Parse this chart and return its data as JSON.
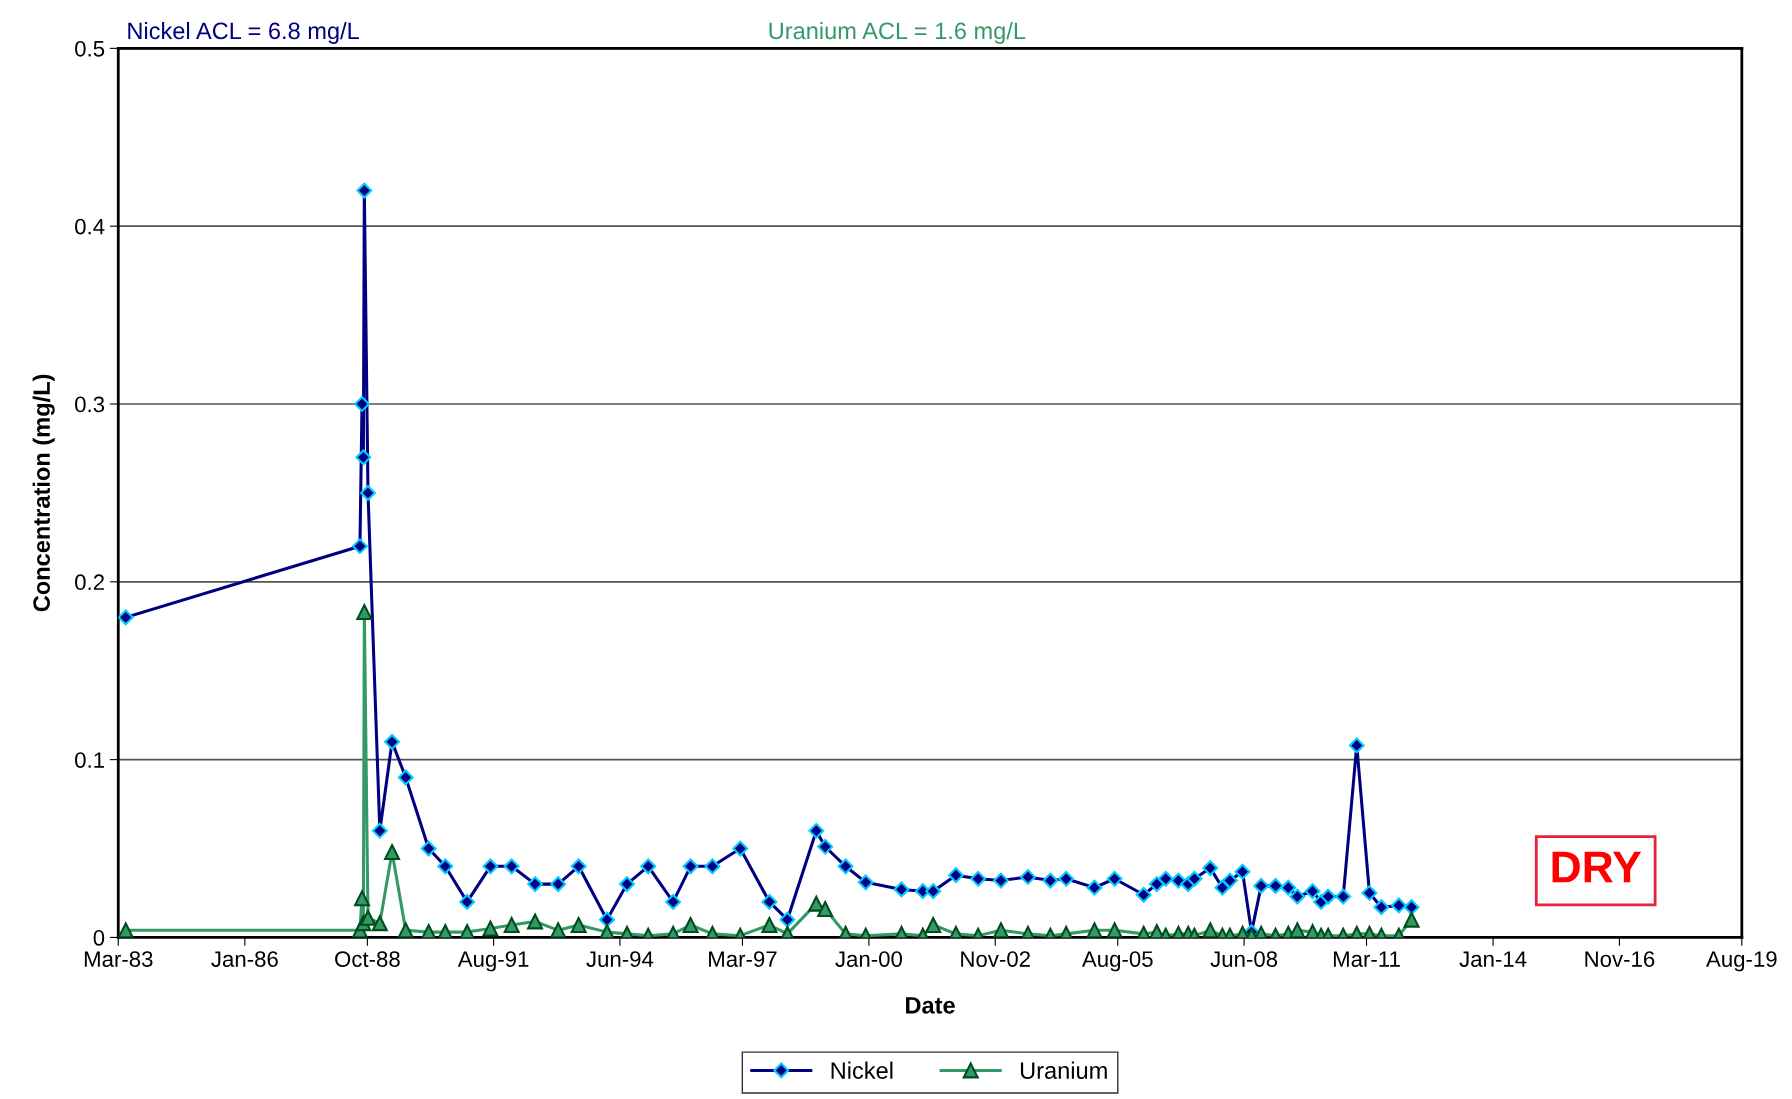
{
  "chart_data": {
    "type": "line",
    "xlabel": "Date",
    "ylabel": "Concentration (mg/L)",
    "x": [
      "1983-05-15",
      "1988-08-15",
      "1988-09-01",
      "1988-09-12",
      "1988-09-20",
      "1988-10-20",
      "1989-01-25",
      "1989-05-05",
      "1989-08-25",
      "1990-03-01",
      "1990-07-15",
      "1991-01-10",
      "1991-07-20",
      "1992-01-10",
      "1992-07-20",
      "1993-01-25",
      "1993-07-12",
      "1994-03-01",
      "1994-08-12",
      "1995-02-02",
      "1995-08-25",
      "1996-01-15",
      "1996-07-12",
      "1997-02-25",
      "1997-10-22",
      "1998-03-18",
      "1998-11-10",
      "1999-01-22",
      "1999-07-08",
      "1999-12-20",
      "2000-10-08",
      "2001-04-01",
      "2001-06-25",
      "2001-12-28",
      "2002-06-28",
      "2003-01-01",
      "2003-08-10",
      "2004-02-10",
      "2004-06-18",
      "2005-02-05",
      "2005-07-20",
      "2006-03-15",
      "2006-07-01",
      "2006-09-12",
      "2006-12-25",
      "2007-03-15",
      "2007-05-05",
      "2007-09-12",
      "2007-12-20",
      "2008-02-20",
      "2008-06-02",
      "2008-08-15",
      "2008-11-02",
      "2009-02-28",
      "2009-06-12",
      "2009-08-25",
      "2009-12-28",
      "2010-03-08",
      "2010-05-05",
      "2010-09-05",
      "2010-12-25",
      "2011-04-08",
      "2011-07-15",
      "2011-12-05",
      "2012-03-18"
    ],
    "series": [
      {
        "name": "Nickel",
        "color": "#000080",
        "marker": "diamond",
        "values": [
          0.18,
          0.22,
          0.3,
          0.27,
          0.42,
          0.25,
          0.06,
          0.11,
          0.09,
          0.05,
          0.04,
          0.02,
          0.04,
          0.04,
          0.03,
          0.03,
          0.04,
          0.01,
          0.03,
          0.04,
          0.02,
          0.04,
          0.04,
          0.05,
          0.02,
          0.01,
          0.06,
          0.051,
          0.04,
          0.031,
          0.027,
          0.026,
          0.026,
          0.035,
          0.033,
          0.032,
          0.034,
          0.032,
          0.033,
          0.028,
          0.033,
          0.024,
          0.03,
          0.033,
          0.032,
          0.03,
          0.033,
          0.039,
          0.028,
          0.032,
          0.037,
          0.003,
          0.029,
          0.029,
          0.028,
          0.023,
          0.026,
          0.02,
          0.023,
          0.023,
          0.108,
          0.025,
          0.017,
          0.018,
          0.017
        ]
      },
      {
        "name": "Uranium",
        "color": "#339966",
        "marker": "triangle",
        "values": [
          0.004,
          0.004,
          0.022,
          0.008,
          0.183,
          0.011,
          0.008,
          0.048,
          0.004,
          0.003,
          0.003,
          0.003,
          0.005,
          0.007,
          0.009,
          0.004,
          0.007,
          0.003,
          0.002,
          0.001,
          0.002,
          0.007,
          0.002,
          0.001,
          0.007,
          0.002,
          0.019,
          0.016,
          0.002,
          0.001,
          0.002,
          0.001,
          0.007,
          0.002,
          0.001,
          0.004,
          0.002,
          0.001,
          0.002,
          0.004,
          0.004,
          0.002,
          0.003,
          0.001,
          0.002,
          0.002,
          0.001,
          0.004,
          0.001,
          0.001,
          0.002,
          0.001,
          0.002,
          0.001,
          0.002,
          0.004,
          0.003,
          0.001,
          0.001,
          0.001,
          0.002,
          0.002,
          0.001,
          0.001,
          0.01
        ]
      }
    ],
    "xlim": [
      "1983-03-15",
      "2019-08-15"
    ],
    "xticks": [
      {
        "value": "1983-03-15",
        "label": "Mar-83"
      },
      {
        "value": "1986-01-15",
        "label": "Jan-86"
      },
      {
        "value": "1988-10-15",
        "label": "Oct-88"
      },
      {
        "value": "1991-08-15",
        "label": "Aug-91"
      },
      {
        "value": "1994-06-15",
        "label": "Jun-94"
      },
      {
        "value": "1997-03-15",
        "label": "Mar-97"
      },
      {
        "value": "2000-01-15",
        "label": "Jan-00"
      },
      {
        "value": "2002-11-15",
        "label": "Nov-02"
      },
      {
        "value": "2005-08-15",
        "label": "Aug-05"
      },
      {
        "value": "2008-06-15",
        "label": "Jun-08"
      },
      {
        "value": "2011-03-15",
        "label": "Mar-11"
      },
      {
        "value": "2014-01-15",
        "label": "Jan-14"
      },
      {
        "value": "2016-11-15",
        "label": "Nov-16"
      },
      {
        "value": "2019-08-15",
        "label": "Aug-19"
      }
    ],
    "ylim": [
      0,
      0.5
    ],
    "yticks": [
      0,
      0.1,
      0.2,
      0.3,
      0.4,
      0.5
    ],
    "grid": "y",
    "legend": "bottom",
    "line_style": "solid",
    "annotations": [
      "Nickel ACL = 6.8 mg/L",
      "Uranium ACL = 1.6 mg/L",
      "DRY"
    ]
  }
}
